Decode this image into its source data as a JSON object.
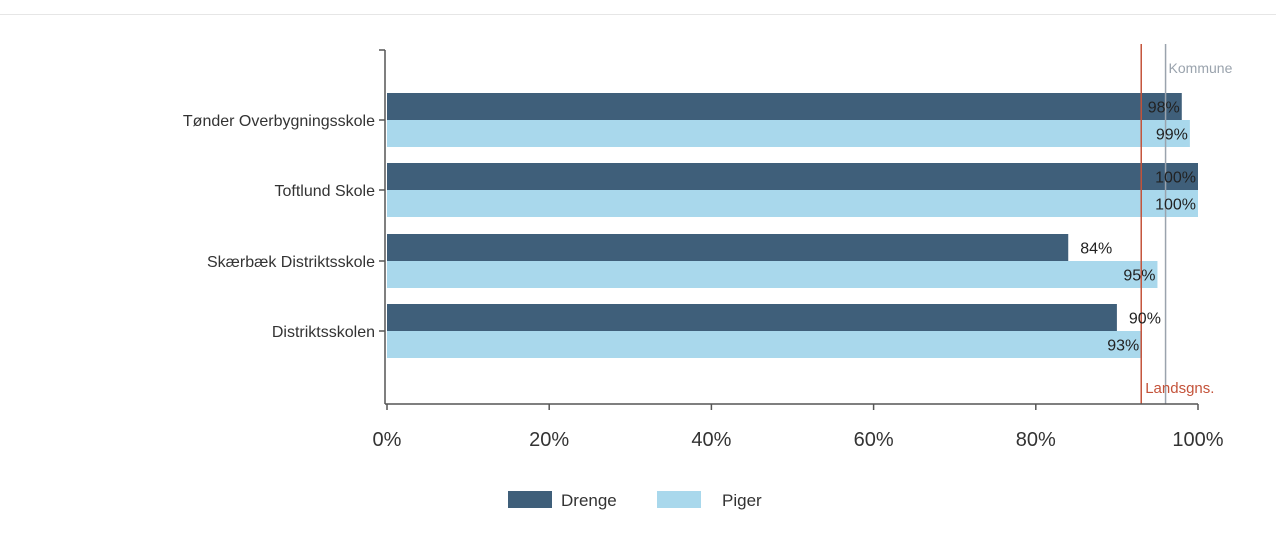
{
  "chart_data": {
    "type": "bar",
    "orientation": "horizontal",
    "categories": [
      "Tønder Overbygningsskole",
      "Toftlund Skole",
      "Skærbæk Distriktsskole",
      "Distriktsskolen"
    ],
    "series": [
      {
        "name": "Drenge",
        "values": [
          98,
          100,
          84,
          90
        ],
        "labels": [
          "98%",
          "100%",
          "84%",
          "90%"
        ],
        "color": "#3f5f7a"
      },
      {
        "name": "Piger",
        "values": [
          99,
          100,
          95,
          93
        ],
        "labels": [
          "99%",
          "100%",
          "95%",
          "93%"
        ],
        "color": "#a9d8ec"
      }
    ],
    "x_ticks": [
      "0%",
      "20%",
      "40%",
      "60%",
      "80%",
      "100%"
    ],
    "x_tick_values": [
      0,
      20,
      40,
      60,
      80,
      100
    ],
    "xlim": [
      0,
      100
    ],
    "reference_lines": [
      {
        "label": "Landsgns.",
        "value": 93,
        "color": "#c4533a"
      },
      {
        "label": "Kommune",
        "value": 96,
        "color": "#9aa3ad"
      }
    ],
    "legend_position": "bottom",
    "grid": false,
    "title": "",
    "xlabel": "",
    "ylabel": ""
  }
}
